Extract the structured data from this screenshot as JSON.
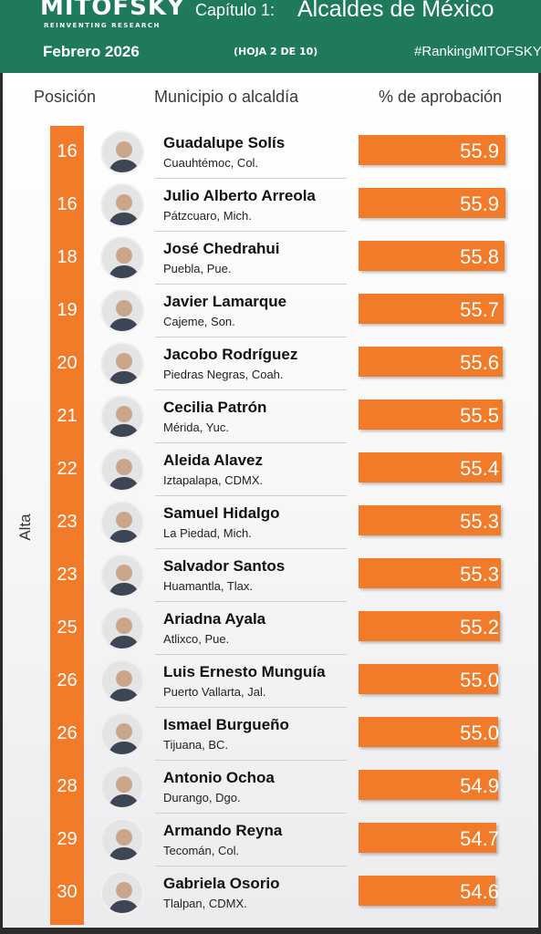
{
  "header": {
    "brand": "MITOFSKY",
    "brand_sub": "REINVENTING RESEARCH",
    "chapter": "Capítulo 1:",
    "chapter_title": "Alcaldes de México",
    "date": "Febrero  2026",
    "sheet": "(HOJA 2 DE 10)",
    "hashtag": "#RankingMITOFSKY"
  },
  "columns": {
    "position": "Posición",
    "municipality": "Municipio o alcaldía",
    "approval": "% de aprobación"
  },
  "side_label": "Alta",
  "colors": {
    "header": "#1f7a5c",
    "accent": "#f27b2a"
  },
  "chart_data": {
    "type": "bar",
    "xlabel": "% de aprobación",
    "rows": [
      {
        "position": "16",
        "name": "Guadalupe Solís",
        "place": "Cuauhtémoc, Col.",
        "value": "55.9"
      },
      {
        "position": "16",
        "name": "Julio Alberto Arreola",
        "place": "Pátzcuaro, Mich.",
        "value": "55.9"
      },
      {
        "position": "18",
        "name": "José Chedrahui",
        "place": "Puebla, Pue.",
        "value": "55.8"
      },
      {
        "position": "19",
        "name": "Javier Lamarque",
        "place": "Cajeme, Son.",
        "value": "55.7"
      },
      {
        "position": "20",
        "name": "Jacobo Rodríguez",
        "place": "Piedras Negras, Coah.",
        "value": "55.6"
      },
      {
        "position": "21",
        "name": "Cecilia Patrón",
        "place": "Mérida, Yuc.",
        "value": "55.5"
      },
      {
        "position": "22",
        "name": "Aleida Alavez",
        "place": "Iztapalapa, CDMX.",
        "value": "55.4"
      },
      {
        "position": "23",
        "name": "Samuel Hidalgo",
        "place": "La Piedad, Mich.",
        "value": "55.3"
      },
      {
        "position": "23",
        "name": "Salvador Santos",
        "place": "Huamantla, Tlax.",
        "value": "55.3"
      },
      {
        "position": "25",
        "name": "Ariadna Ayala",
        "place": "Atlixco, Pue.",
        "value": "55.2"
      },
      {
        "position": "26",
        "name": "Luis Ernesto Munguía",
        "place": "Puerto Vallarta, Jal.",
        "value": "55.0"
      },
      {
        "position": "26",
        "name": "Ismael Burgueño",
        "place": "Tijuana, BC.",
        "value": "55.0"
      },
      {
        "position": "28",
        "name": "Antonio Ochoa",
        "place": "Durango, Dgo.",
        "value": "54.9"
      },
      {
        "position": "29",
        "name": "Armando Reyna",
        "place": "Tecomán, Col.",
        "value": "54.7"
      },
      {
        "position": "30",
        "name": "Gabriela Osorio",
        "place": "Tlalpan, CDMX.",
        "value": "54.6"
      }
    ]
  }
}
